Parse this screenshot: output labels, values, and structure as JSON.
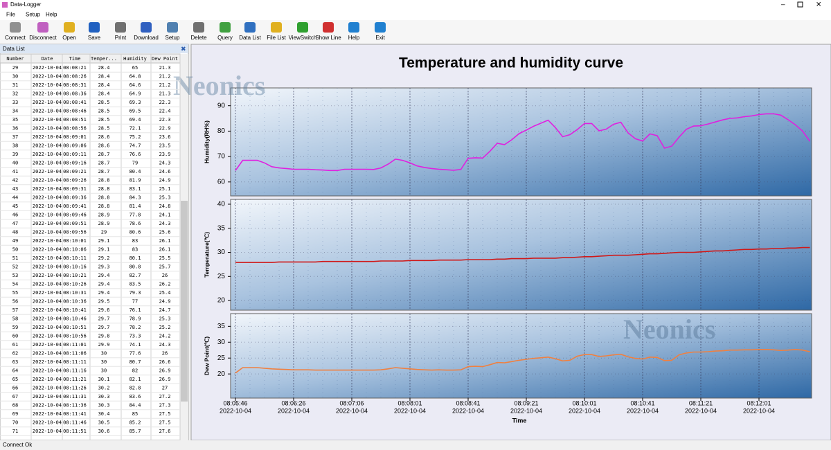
{
  "window": {
    "title": "Data-Logger"
  },
  "menu": [
    "File",
    "Setup",
    "Help"
  ],
  "toolbar": [
    "Connect",
    "Disconnect",
    "Open",
    "Save",
    "Print",
    "Download",
    "Setup",
    "Delete",
    "Query",
    "Data List",
    "File List",
    "ViewSwitch",
    "Show Line",
    "Help",
    "Exit"
  ],
  "panel": {
    "title": "Data List"
  },
  "table": {
    "columns": [
      "Number",
      "Date",
      "Time",
      "Temper...",
      "Humidity",
      "Dew Point"
    ],
    "rows": [
      [
        29,
        "2022-10-04",
        "08:08:21",
        28.4,
        65,
        21.3
      ],
      [
        30,
        "2022-10-04",
        "08:08:26",
        28.4,
        64.8,
        21.2
      ],
      [
        31,
        "2022-10-04",
        "08:08:31",
        28.4,
        64.6,
        21.2
      ],
      [
        32,
        "2022-10-04",
        "08:08:36",
        28.4,
        64.9,
        21.3
      ],
      [
        33,
        "2022-10-04",
        "08:08:41",
        28.5,
        69.3,
        22.3
      ],
      [
        34,
        "2022-10-04",
        "08:08:46",
        28.5,
        69.5,
        22.4
      ],
      [
        35,
        "2022-10-04",
        "08:08:51",
        28.5,
        69.4,
        22.3
      ],
      [
        36,
        "2022-10-04",
        "08:08:56",
        28.5,
        72.1,
        22.9
      ],
      [
        37,
        "2022-10-04",
        "08:09:01",
        28.6,
        75.2,
        23.6
      ],
      [
        38,
        "2022-10-04",
        "08:09:06",
        28.6,
        74.7,
        23.5
      ],
      [
        39,
        "2022-10-04",
        "08:09:11",
        28.7,
        76.6,
        23.9
      ],
      [
        40,
        "2022-10-04",
        "08:09:16",
        28.7,
        79,
        24.3
      ],
      [
        41,
        "2022-10-04",
        "08:09:21",
        28.7,
        80.4,
        24.6
      ],
      [
        42,
        "2022-10-04",
        "08:09:26",
        28.8,
        81.9,
        24.9
      ],
      [
        43,
        "2022-10-04",
        "08:09:31",
        28.8,
        83.1,
        25.1
      ],
      [
        44,
        "2022-10-04",
        "08:09:36",
        28.8,
        84.3,
        25.3
      ],
      [
        45,
        "2022-10-04",
        "08:09:41",
        28.8,
        81.4,
        24.8
      ],
      [
        46,
        "2022-10-04",
        "08:09:46",
        28.9,
        77.8,
        24.1
      ],
      [
        47,
        "2022-10-04",
        "08:09:51",
        28.9,
        78.6,
        24.3
      ],
      [
        48,
        "2022-10-04",
        "08:09:56",
        29,
        80.6,
        25.6
      ],
      [
        49,
        "2022-10-04",
        "08:10:01",
        29.1,
        83,
        26.1
      ],
      [
        50,
        "2022-10-04",
        "08:10:06",
        29.1,
        83,
        26.1
      ],
      [
        51,
        "2022-10-04",
        "08:10:11",
        29.2,
        80.1,
        25.5
      ],
      [
        52,
        "2022-10-04",
        "08:10:16",
        29.3,
        80.8,
        25.7
      ],
      [
        53,
        "2022-10-04",
        "08:10:21",
        29.4,
        82.7,
        26
      ],
      [
        54,
        "2022-10-04",
        "08:10:26",
        29.4,
        83.5,
        26.2
      ],
      [
        55,
        "2022-10-04",
        "08:10:31",
        29.4,
        79.3,
        25.4
      ],
      [
        56,
        "2022-10-04",
        "08:10:36",
        29.5,
        77,
        24.9
      ],
      [
        57,
        "2022-10-04",
        "08:10:41",
        29.6,
        76.1,
        24.7
      ],
      [
        58,
        "2022-10-04",
        "08:10:46",
        29.7,
        78.9,
        25.3
      ],
      [
        59,
        "2022-10-04",
        "08:10:51",
        29.7,
        78.2,
        25.2
      ],
      [
        60,
        "2022-10-04",
        "08:10:56",
        29.8,
        73.3,
        24.2
      ],
      [
        61,
        "2022-10-04",
        "08:11:01",
        29.9,
        74.1,
        24.3
      ],
      [
        62,
        "2022-10-04",
        "08:11:06",
        30,
        77.6,
        26
      ],
      [
        63,
        "2022-10-04",
        "08:11:11",
        30,
        80.7,
        26.6
      ],
      [
        64,
        "2022-10-04",
        "08:11:16",
        30,
        82,
        26.9
      ],
      [
        65,
        "2022-10-04",
        "08:11:21",
        30.1,
        82.1,
        26.9
      ],
      [
        66,
        "2022-10-04",
        "08:11:26",
        30.2,
        82.8,
        27
      ],
      [
        67,
        "2022-10-04",
        "08:11:31",
        30.3,
        83.6,
        27.2
      ],
      [
        68,
        "2022-10-04",
        "08:11:36",
        30.3,
        84.4,
        27.3
      ],
      [
        69,
        "2022-10-04",
        "08:11:41",
        30.4,
        85,
        27.5
      ],
      [
        70,
        "2022-10-04",
        "08:11:46",
        30.5,
        85.2,
        27.5
      ],
      [
        71,
        "2022-10-04",
        "08:11:51",
        30.6,
        85.7,
        27.6
      ]
    ]
  },
  "watermark": "Neonics",
  "status": "Connect Ok",
  "chart_data": {
    "type": "line",
    "title": "Temperature and humidity curve",
    "xlabel": "Time",
    "categories": [
      "08:05:46",
      null,
      null,
      null,
      null,
      null,
      null,
      null,
      "08:06:26",
      null,
      null,
      null,
      null,
      null,
      null,
      null,
      "08:07:06",
      null,
      null,
      null,
      null,
      null,
      null,
      null,
      "08:08:01",
      null,
      null,
      null,
      null,
      null,
      null,
      null,
      "08:08:41",
      null,
      null,
      null,
      null,
      null,
      null,
      null,
      "08:09:21",
      null,
      null,
      null,
      null,
      null,
      null,
      null,
      "08:10:01",
      null,
      null,
      null,
      null,
      null,
      null,
      null,
      "08:10:41",
      null,
      null,
      null,
      null,
      null,
      null,
      null,
      "08:11:21",
      null,
      null,
      null,
      null,
      null,
      null,
      null,
      "08:12:01",
      null,
      null,
      null,
      null,
      null,
      null,
      null
    ],
    "category_dates": [
      "2022-10-04",
      null,
      null,
      null,
      null,
      null,
      null,
      null,
      "2022-10-04",
      null,
      null,
      null,
      null,
      null,
      null,
      null,
      "2022-10-04",
      null,
      null,
      null,
      null,
      null,
      null,
      null,
      "2022-10-04",
      null,
      null,
      null,
      null,
      null,
      null,
      null,
      "2022-10-04",
      null,
      null,
      null,
      null,
      null,
      null,
      null,
      "2022-10-04",
      null,
      null,
      null,
      null,
      null,
      null,
      null,
      "2022-10-04",
      null,
      null,
      null,
      null,
      null,
      null,
      null,
      "2022-10-04",
      null,
      null,
      null,
      null,
      null,
      null,
      null,
      "2022-10-04",
      null,
      null,
      null,
      null,
      null,
      null,
      null,
      "2022-10-04",
      null,
      null,
      null,
      null,
      null,
      null,
      null
    ],
    "panels": [
      {
        "ylabel": "Humidity(RH%)",
        "ylim": [
          54.5,
          97
        ],
        "yticks": [
          60,
          70,
          80,
          90
        ],
        "color": "#e020e0",
        "values": [
          64.5,
          68.5,
          68.5,
          68.5,
          67.5,
          66,
          65.5,
          65.3,
          65,
          65,
          65,
          64.8,
          64.7,
          64.5,
          64.5,
          65,
          65,
          65,
          65,
          64.9,
          65.5,
          67,
          69,
          68.5,
          67.5,
          66.3,
          65.7,
          65.3,
          65,
          64.8,
          64.6,
          64.9,
          69.3,
          69.5,
          69.4,
          72.1,
          75.2,
          74.7,
          76.6,
          79,
          80.4,
          81.9,
          83.1,
          84.3,
          81.4,
          77.8,
          78.6,
          80.6,
          83,
          83,
          80.1,
          80.8,
          82.7,
          83.5,
          79.3,
          77,
          76.1,
          78.9,
          78.2,
          73.3,
          74.1,
          77.6,
          80.7,
          82,
          82.1,
          82.8,
          83.6,
          84.4,
          85,
          85.2,
          85.7,
          86,
          86.5,
          86.8,
          86.8,
          86.3,
          84.5,
          82.5,
          80,
          76
        ]
      },
      {
        "ylabel": "Temperature(℃)",
        "ylim": [
          18,
          41
        ],
        "yticks": [
          20,
          25,
          30,
          35,
          40
        ],
        "color": "#d01818",
        "values": [
          27.9,
          27.9,
          27.9,
          27.9,
          27.9,
          27.9,
          28,
          28,
          28,
          28,
          28,
          28,
          28.1,
          28.1,
          28.1,
          28.1,
          28.1,
          28.1,
          28.1,
          28.1,
          28.2,
          28.2,
          28.2,
          28.2,
          28.3,
          28.3,
          28.3,
          28.3,
          28.4,
          28.4,
          28.4,
          28.4,
          28.5,
          28.5,
          28.5,
          28.5,
          28.6,
          28.6,
          28.7,
          28.7,
          28.7,
          28.8,
          28.8,
          28.8,
          28.8,
          28.9,
          28.9,
          29,
          29.1,
          29.1,
          29.2,
          29.3,
          29.4,
          29.4,
          29.4,
          29.5,
          29.6,
          29.7,
          29.7,
          29.8,
          29.9,
          30,
          30,
          30,
          30.1,
          30.2,
          30.3,
          30.3,
          30.4,
          30.5,
          30.6,
          30.6,
          30.7,
          30.7,
          30.8,
          30.8,
          30.9,
          30.9,
          31,
          31
        ]
      },
      {
        "ylabel": "Dew Point(℃)",
        "ylim": [
          12.4,
          39
        ],
        "yticks": [
          20,
          25,
          30,
          35
        ],
        "color": "#f08040",
        "values": [
          20.3,
          22,
          22,
          22,
          21.8,
          21.6,
          21.5,
          21.4,
          21.3,
          21.3,
          21.3,
          21.2,
          21.2,
          21.2,
          21.2,
          21.2,
          21.2,
          21.2,
          21.2,
          21.2,
          21.3,
          21.6,
          22,
          21.8,
          21.6,
          21.4,
          21.3,
          21.2,
          21.3,
          21.2,
          21.2,
          21.3,
          22.3,
          22.4,
          22.3,
          22.9,
          23.6,
          23.5,
          23.9,
          24.3,
          24.6,
          24.9,
          25.1,
          25.3,
          24.8,
          24.1,
          24.3,
          25.6,
          26.1,
          26.1,
          25.5,
          25.7,
          26,
          26.2,
          25.4,
          24.9,
          24.7,
          25.3,
          25.2,
          24.2,
          24.3,
          26,
          26.6,
          26.9,
          26.9,
          27,
          27.2,
          27.3,
          27.5,
          27.5,
          27.6,
          27.6,
          27.7,
          27.7,
          27.6,
          27.4,
          27.5,
          27.7,
          27.5,
          27
        ]
      }
    ]
  }
}
